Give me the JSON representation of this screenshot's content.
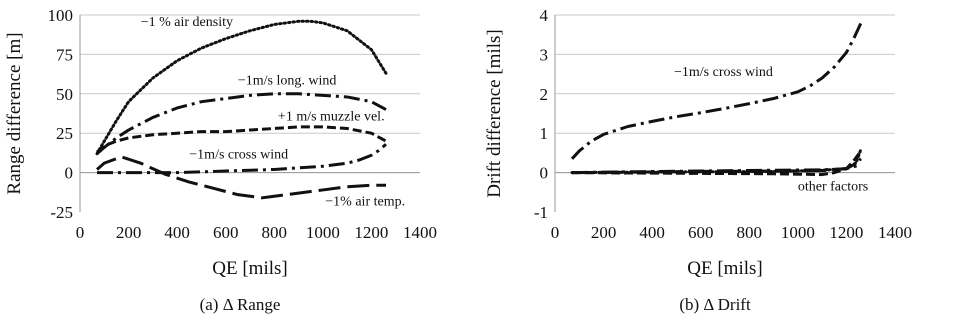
{
  "chart_data": [
    {
      "type": "line",
      "caption": "(a) Δ Range",
      "xlabel": "QE [mils]",
      "ylabel": "Range difference [m]",
      "xlim": [
        0,
        1400
      ],
      "ylim": [
        -25,
        100
      ],
      "xticks": [
        0,
        200,
        400,
        600,
        800,
        1000,
        1200,
        1400
      ],
      "yticks": [
        -25,
        0,
        25,
        50,
        75,
        100
      ],
      "grid": "horizontal",
      "annotations": [
        {
          "text": "−1 % air density",
          "x": 250,
          "y": 93
        },
        {
          "text": "−1m/s long. wind",
          "x": 650,
          "y": 56
        },
        {
          "text": "+1 m/s muzzle vel.",
          "x": 815,
          "y": 33
        },
        {
          "text": "−1m/s cross wind",
          "x": 450,
          "y": 9
        },
        {
          "text": "−1% air temp.",
          "x": 1010,
          "y": -21
        }
      ],
      "series": [
        {
          "style": "dotted",
          "x": [
            70,
            100,
            150,
            200,
            300,
            400,
            500,
            600,
            700,
            800,
            900,
            950,
            1000,
            1100,
            1200,
            1260
          ],
          "y": [
            12,
            20,
            33,
            45,
            60,
            71,
            79,
            85,
            90,
            94,
            96,
            96,
            95,
            90,
            78,
            63
          ]
        },
        {
          "style": "dash-dot",
          "x": [
            70,
            100,
            150,
            200,
            300,
            400,
            500,
            600,
            700,
            800,
            900,
            1000,
            1100,
            1200,
            1260
          ],
          "y": [
            12,
            16,
            22,
            27,
            35,
            41,
            45,
            47,
            49,
            50,
            50,
            49,
            48,
            45,
            40
          ]
        },
        {
          "style": "dashed",
          "x": [
            70,
            100,
            150,
            200,
            300,
            400,
            500,
            600,
            700,
            800,
            900,
            1000,
            1100,
            1200,
            1260
          ],
          "y": [
            13,
            17,
            20,
            22,
            24,
            25,
            26,
            26,
            27,
            28,
            29,
            29,
            28,
            25,
            20
          ]
        },
        {
          "style": "dash-dot",
          "x": [
            70,
            200,
            400,
            600,
            800,
            1000,
            1100,
            1150,
            1200,
            1230,
            1260
          ],
          "y": [
            0,
            0,
            0,
            1,
            2,
            4,
            6,
            8,
            11,
            14,
            18
          ]
        },
        {
          "style": "long-dash",
          "x": [
            70,
            100,
            170,
            250,
            350,
            450,
            550,
            650,
            750,
            800,
            900,
            1000,
            1100,
            1200,
            1260
          ],
          "y": [
            2,
            6,
            10,
            6,
            -1,
            -6,
            -10,
            -14,
            -16,
            -15,
            -13,
            -11,
            -9,
            -8,
            -8
          ]
        }
      ]
    },
    {
      "type": "line",
      "caption": "(b) Δ Drift",
      "xlabel": "QE [mils]",
      "ylabel": "Drift difference [mils]",
      "xlim": [
        0,
        1400
      ],
      "ylim": [
        -1,
        4
      ],
      "xticks": [
        0,
        200,
        400,
        600,
        800,
        1000,
        1200,
        1400
      ],
      "yticks": [
        -1,
        0,
        1,
        2,
        3,
        4
      ],
      "grid": "horizontal",
      "annotations": [
        {
          "text": "−1m/s cross wind",
          "x": 490,
          "y": 2.45
        },
        {
          "text": "other factors",
          "x": 1000,
          "y": -0.45
        }
      ],
      "series": [
        {
          "style": "dash-dot",
          "x": [
            70,
            100,
            150,
            200,
            300,
            400,
            500,
            600,
            700,
            800,
            900,
            1000,
            1050,
            1100,
            1150,
            1200,
            1230,
            1260
          ],
          "y": [
            0.35,
            0.55,
            0.8,
            0.97,
            1.17,
            1.3,
            1.42,
            1.52,
            1.63,
            1.75,
            1.88,
            2.05,
            2.2,
            2.4,
            2.68,
            3.05,
            3.4,
            3.8
          ]
        },
        {
          "style": "long-dash",
          "x": [
            70,
            300,
            600,
            900,
            1100,
            1200,
            1230,
            1260
          ],
          "y": [
            0,
            0.01,
            0.03,
            0.04,
            0.05,
            0.1,
            0.2,
            0.35
          ]
        },
        {
          "style": "dashed",
          "x": [
            70,
            300,
            600,
            900,
            1100,
            1150,
            1200,
            1230,
            1260
          ],
          "y": [
            0,
            -0.01,
            -0.02,
            -0.03,
            -0.05,
            0,
            0.1,
            0.3,
            0.55
          ]
        },
        {
          "style": "dotted",
          "x": [
            70,
            300,
            600,
            900,
            1100,
            1200,
            1240,
            1260
          ],
          "y": [
            0,
            0.01,
            0.02,
            0.03,
            0.06,
            0.1,
            0.25,
            0.6
          ]
        },
        {
          "style": "dash-dot",
          "x": [
            70,
            300,
            600,
            900,
            1100,
            1200,
            1230,
            1260
          ],
          "y": [
            0,
            0.02,
            0.04,
            0.06,
            0.07,
            0.1,
            0.15,
            0.2
          ]
        }
      ]
    }
  ]
}
